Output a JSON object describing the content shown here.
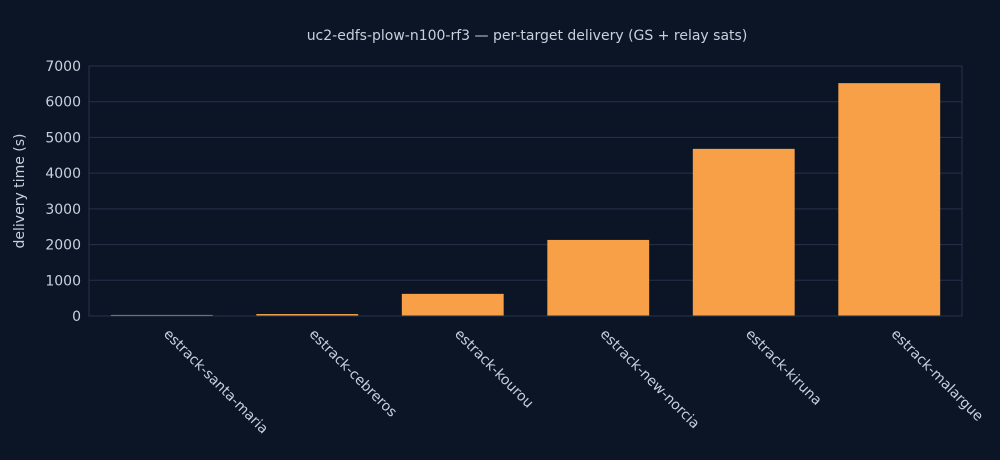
{
  "chart_data": {
    "type": "bar",
    "title": "uc2-edfs-plow-n100-rf3 — per-target delivery (GS + relay sats)",
    "xlabel": "",
    "ylabel": "delivery time (s)",
    "categories": [
      "estrack-santa-maria",
      "estrack-cebreros",
      "estrack-kourou",
      "estrack-new-norcia",
      "estrack-kiruna",
      "estrack-malargue"
    ],
    "values": [
      30,
      55,
      620,
      2130,
      4680,
      6520
    ],
    "ylim": [
      0,
      7000
    ],
    "yticks": [
      "0",
      "1000",
      "2000",
      "3000",
      "4000",
      "5000",
      "6000",
      "7000"
    ],
    "grid": true,
    "bar_color": "#f7a047"
  }
}
